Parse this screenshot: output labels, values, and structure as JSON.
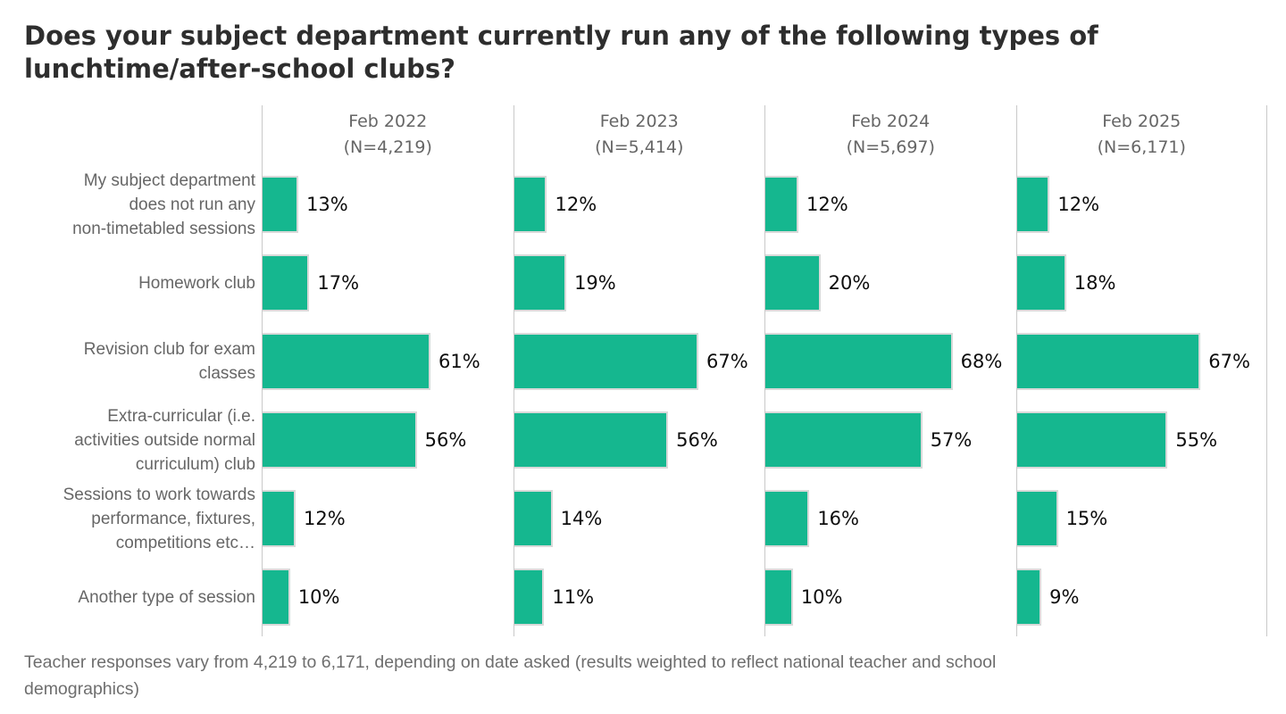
{
  "title": "Does your subject department currently run any of the following types of\nlunchtime/after-school clubs?",
  "footnote": "Teacher responses vary from 4,219 to 6,171, depending on date asked (results weighted to reflect national teacher and school\ndemographics)",
  "colors": {
    "bar": "#15b78f",
    "bar_border": "#d9d9d9",
    "grid": "#c9c9c9",
    "title": "#2e2e2e",
    "label": "#666666",
    "value": "#0d0d0d",
    "footnote": "#6e6e6e"
  },
  "chart_data": {
    "type": "bar",
    "orientation": "horizontal",
    "title": "Does your subject department currently run any of the following types of lunchtime/after-school clubs?",
    "categories": [
      "My subject department\ndoes not run any\nnon-timetabled sessions",
      "Homework club",
      "Revision club for exam\nclasses",
      "Extra-curricular (i.e.\nactivities outside normal\ncurriculum) club",
      "Sessions to work towards\nperformance, fixtures,\ncompetitions etc…",
      "Another type of session"
    ],
    "series": [
      {
        "name": "Feb 2022",
        "n_label": "(N=4,219)",
        "values": [
          13,
          17,
          61,
          56,
          12,
          10
        ]
      },
      {
        "name": "Feb 2023",
        "n_label": "(N=5,414)",
        "values": [
          12,
          19,
          67,
          56,
          14,
          11
        ]
      },
      {
        "name": "Feb 2024",
        "n_label": "(N=5,697)",
        "values": [
          12,
          20,
          68,
          57,
          16,
          10
        ]
      },
      {
        "name": "Feb 2025",
        "n_label": "(N=6,171)",
        "values": [
          12,
          18,
          67,
          55,
          15,
          9
        ]
      }
    ],
    "value_suffix": "%",
    "xlim": [
      0,
      91
    ],
    "grid": "panel-divider-lines-only",
    "legend_position": "none",
    "data_labels": "outside-end"
  }
}
